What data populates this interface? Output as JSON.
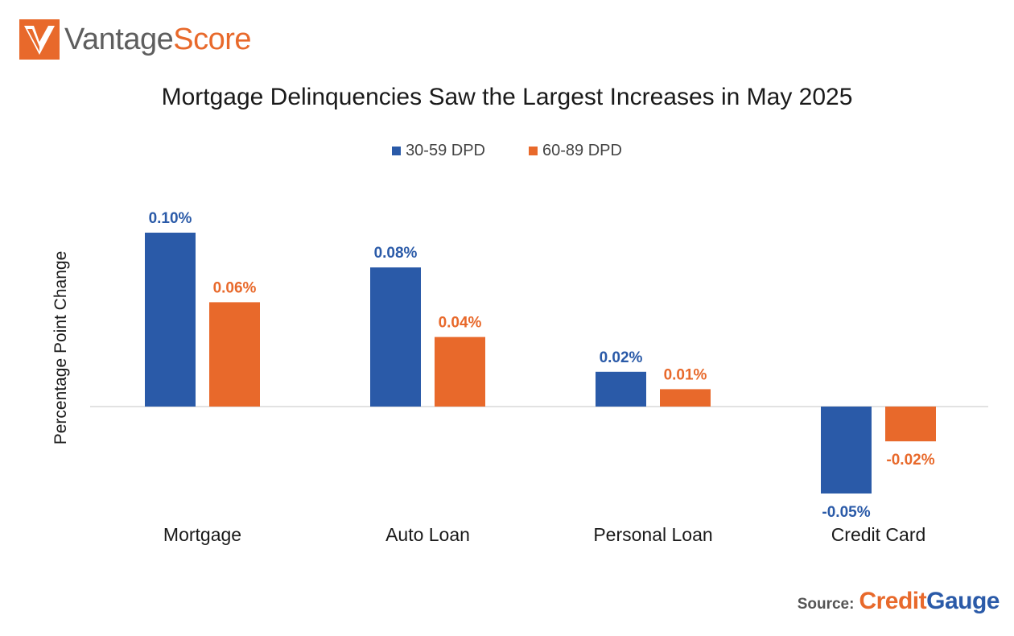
{
  "logo": {
    "part1": "Vantage",
    "part2": "Score"
  },
  "source": {
    "label": "Source:",
    "brand1": "Credit",
    "brand2": "Gauge"
  },
  "colors": {
    "series1": "#2a5aa8",
    "series2": "#e8692b",
    "axis": "#d9d9d9",
    "text": "#1a1a1a"
  },
  "chart_data": {
    "type": "bar",
    "title": "Mortgage Delinquencies Saw the Largest Increases in May 2025",
    "ylabel": "Percentage Point Change",
    "xlabel": "",
    "categories": [
      "Mortgage",
      "Auto Loan",
      "Personal Loan",
      "Credit Card"
    ],
    "series": [
      {
        "name": "30-59 DPD",
        "values": [
          0.1,
          0.08,
          0.02,
          -0.05
        ],
        "labels": [
          "0.10%",
          "0.08%",
          "0.02%",
          "-0.05%"
        ]
      },
      {
        "name": "60-89 DPD",
        "values": [
          0.06,
          0.04,
          0.01,
          -0.02
        ],
        "labels": [
          "0.06%",
          "0.04%",
          "0.01%",
          "-0.02%"
        ]
      }
    ],
    "legend_position": "top-center",
    "grid": false
  }
}
